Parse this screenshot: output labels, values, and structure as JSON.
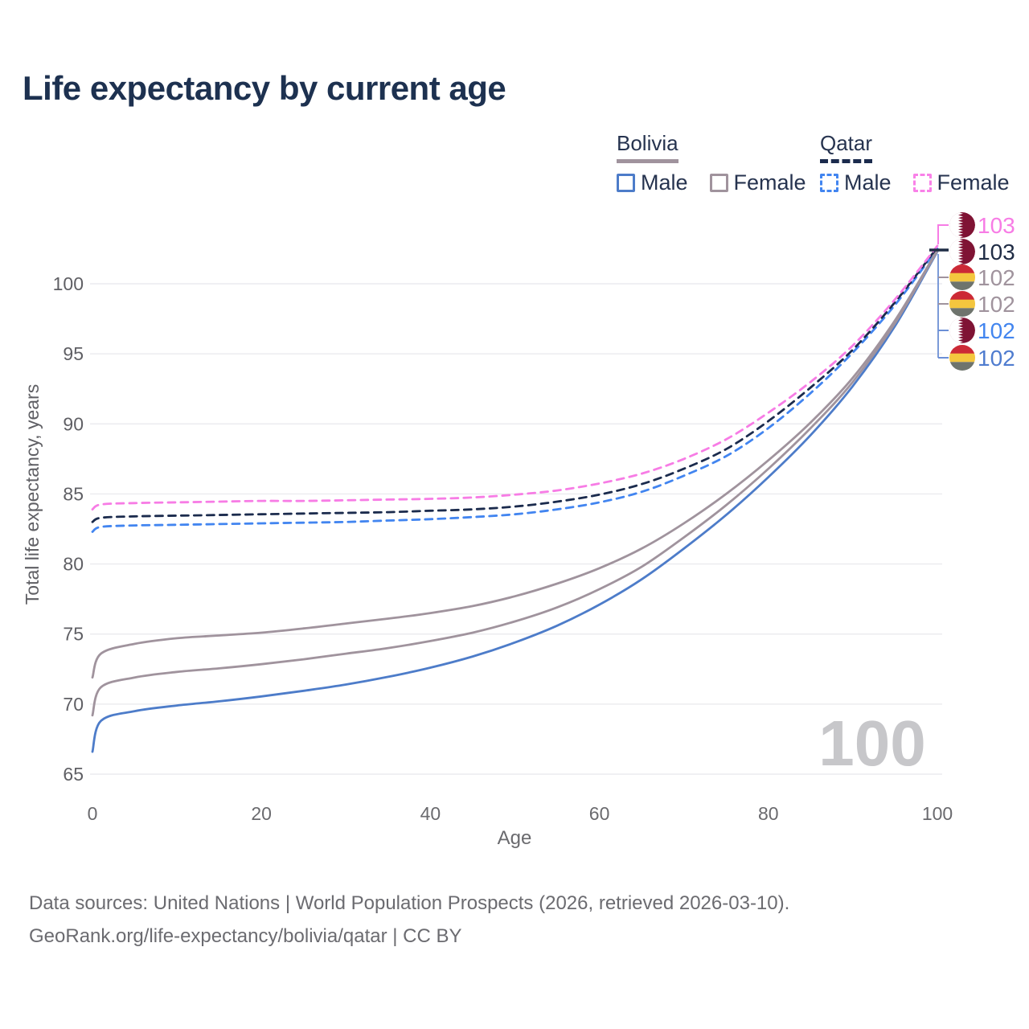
{
  "title": "Life expectancy by current age",
  "watermark": "100",
  "legend": {
    "groups": [
      {
        "country": "Bolivia",
        "line_style": "solid",
        "underline_color": "#a0939d",
        "items": [
          {
            "label": "Male",
            "color": "#4d7cc9"
          },
          {
            "label": "Female",
            "color": "#a0939d"
          }
        ]
      },
      {
        "country": "Qatar",
        "line_style": "dashed",
        "underline_color": "#1b2b4d",
        "items": [
          {
            "label": "Male",
            "color": "#4285f0"
          },
          {
            "label": "Female",
            "color": "#f981e8"
          }
        ]
      }
    ]
  },
  "chart_data": {
    "type": "line",
    "title": "Life expectancy by current age",
    "xlabel": "Age",
    "ylabel": "Total life expectancy, years",
    "xlim": [
      0,
      100
    ],
    "ylim": [
      65,
      103.5
    ],
    "x_ticks": [
      0,
      20,
      40,
      60,
      80,
      100
    ],
    "y_ticks": [
      65,
      70,
      75,
      80,
      85,
      90,
      95,
      100
    ],
    "grid": true,
    "legend_position": "top-right",
    "x": [
      0,
      1,
      5,
      10,
      15,
      20,
      25,
      30,
      35,
      40,
      45,
      50,
      55,
      60,
      65,
      70,
      75,
      80,
      85,
      90,
      95,
      100
    ],
    "series": [
      {
        "name": "Qatar Female",
        "country": "Qatar",
        "color": "#f77ce5",
        "dashed": true,
        "end_label": "103",
        "flag": "qatar",
        "label_color": "#f77ce5",
        "values": [
          83.9,
          84.25,
          84.35,
          84.4,
          84.45,
          84.5,
          84.5,
          84.55,
          84.6,
          84.65,
          84.75,
          84.95,
          85.25,
          85.75,
          86.45,
          87.5,
          88.9,
          90.8,
          93.0,
          95.6,
          98.9,
          102.7
        ]
      },
      {
        "name": "Qatar",
        "country": "Qatar",
        "color": "#1b2b4d",
        "dashed": true,
        "end_label": "103",
        "flag": "qatar",
        "label_color": "#1f2c45",
        "values": [
          83.0,
          83.3,
          83.4,
          83.45,
          83.5,
          83.55,
          83.6,
          83.65,
          83.7,
          83.8,
          83.9,
          84.1,
          84.45,
          84.95,
          85.7,
          86.8,
          88.2,
          90.2,
          92.6,
          95.3,
          98.7,
          102.6
        ]
      },
      {
        "name": "Bolivia Female",
        "country": "Bolivia",
        "color": "#a0939d",
        "dashed": false,
        "end_label": "102",
        "flag": "bolivia",
        "label_color": "#a0939d",
        "values": [
          71.9,
          73.6,
          74.3,
          74.7,
          74.9,
          75.1,
          75.4,
          75.75,
          76.1,
          76.5,
          77.0,
          77.7,
          78.6,
          79.7,
          81.1,
          82.9,
          85.0,
          87.4,
          90.1,
          93.3,
          97.4,
          102.4
        ]
      },
      {
        "name": "Bolivia",
        "country": "Bolivia",
        "color": "#a0939d",
        "dashed": false,
        "end_label": "102",
        "flag": "bolivia",
        "label_color": "#a0939d",
        "values": [
          69.2,
          71.2,
          71.9,
          72.3,
          72.55,
          72.85,
          73.2,
          73.6,
          74.0,
          74.5,
          75.1,
          75.9,
          76.9,
          78.2,
          79.8,
          81.9,
          84.2,
          86.8,
          89.7,
          93.0,
          97.2,
          102.35
        ]
      },
      {
        "name": "Qatar Male",
        "country": "Qatar",
        "color": "#4285f0",
        "dashed": true,
        "end_label": "102",
        "flag": "qatar",
        "label_color": "#4285ef",
        "values": [
          82.3,
          82.65,
          82.75,
          82.8,
          82.85,
          82.9,
          82.95,
          83.0,
          83.1,
          83.2,
          83.35,
          83.55,
          83.9,
          84.4,
          85.15,
          86.3,
          87.7,
          89.7,
          92.2,
          95.1,
          98.5,
          102.5
        ]
      },
      {
        "name": "Bolivia Male",
        "country": "Bolivia",
        "color": "#4d7cc9",
        "dashed": false,
        "end_label": "102",
        "flag": "bolivia",
        "label_color": "#4f7ccf",
        "values": [
          66.6,
          68.8,
          69.5,
          69.9,
          70.2,
          70.55,
          70.95,
          71.4,
          71.95,
          72.6,
          73.4,
          74.4,
          75.6,
          77.1,
          78.9,
          81.1,
          83.5,
          86.2,
          89.2,
          92.7,
          97.0,
          102.3
        ]
      }
    ]
  },
  "footer": {
    "line1": "Data sources: United Nations | World Population Prospects (2026, retrieved 2026-03-10).",
    "line2": "GeoRank.org/life-expectancy/bolivia/qatar | CC BY"
  }
}
